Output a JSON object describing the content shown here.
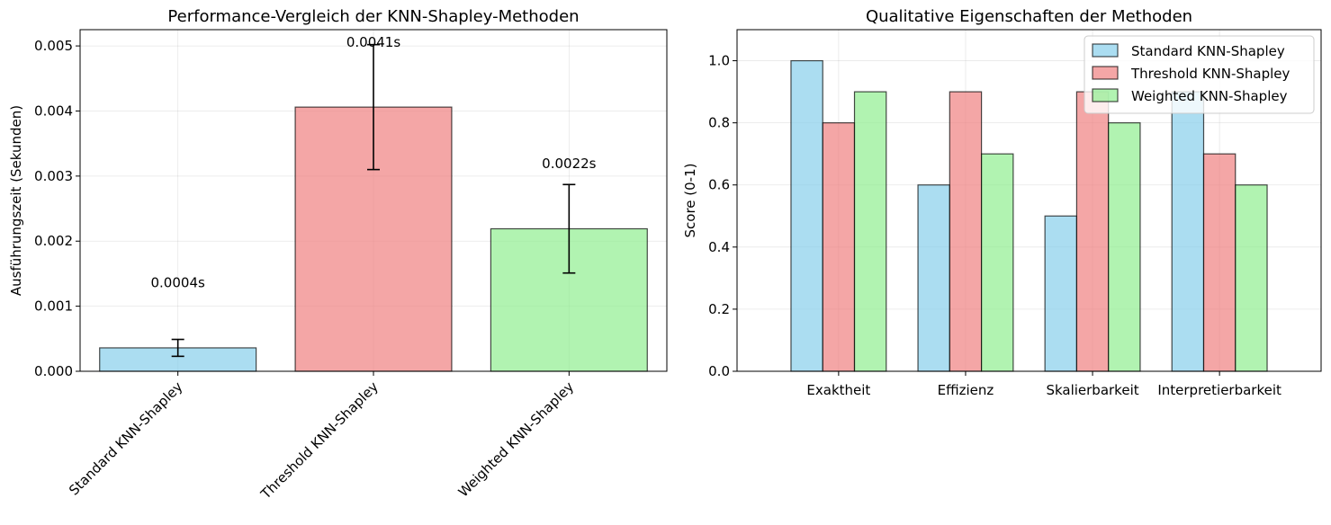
{
  "chart_data": [
    {
      "type": "bar",
      "title": "Performance-Vergleich der KNN-Shapley-Methoden",
      "xlabel": "",
      "ylabel": "Ausführungszeit (Sekunden)",
      "categories": [
        "Standard KNN-Shapley",
        "Threshold KNN-Shapley",
        "Weighted KNN-Shapley"
      ],
      "values": [
        0.00036,
        0.00406,
        0.00219
      ],
      "errors": [
        0.00013,
        0.00096,
        0.00068
      ],
      "value_labels": [
        "0.0004s",
        "0.0041s",
        "0.0022s"
      ],
      "colors": [
        "#87ceeb",
        "#f08080",
        "#90ee90"
      ],
      "ylim": [
        0,
        0.00525
      ],
      "yticks": [
        0.0,
        0.001,
        0.002,
        0.003,
        0.004,
        0.005
      ],
      "ytick_labels": [
        "0.000",
        "0.001",
        "0.002",
        "0.003",
        "0.004",
        "0.005"
      ],
      "grid": true,
      "xtick_rotation_deg": 45
    },
    {
      "type": "bar",
      "title": "Qualitative Eigenschaften der Methoden",
      "xlabel": "",
      "ylabel": "Score (0-1)",
      "categories": [
        "Exaktheit",
        "Effizienz",
        "Skalierbarkeit",
        "Interpretierbarkeit"
      ],
      "series": [
        {
          "name": "Standard KNN-Shapley",
          "color": "#87ceeb",
          "values": [
            1.0,
            0.6,
            0.5,
            0.9
          ]
        },
        {
          "name": "Threshold KNN-Shapley",
          "color": "#f08080",
          "values": [
            0.8,
            0.9,
            0.9,
            0.7
          ]
        },
        {
          "name": "Weighted KNN-Shapley",
          "color": "#90ee90",
          "values": [
            0.9,
            0.7,
            0.8,
            0.6
          ]
        }
      ],
      "ylim": [
        0,
        1.1
      ],
      "yticks": [
        0.0,
        0.2,
        0.4,
        0.6,
        0.8,
        1.0
      ],
      "ytick_labels": [
        "0.0",
        "0.2",
        "0.4",
        "0.6",
        "0.8",
        "1.0"
      ],
      "legend": "top-right",
      "grid": true
    }
  ]
}
